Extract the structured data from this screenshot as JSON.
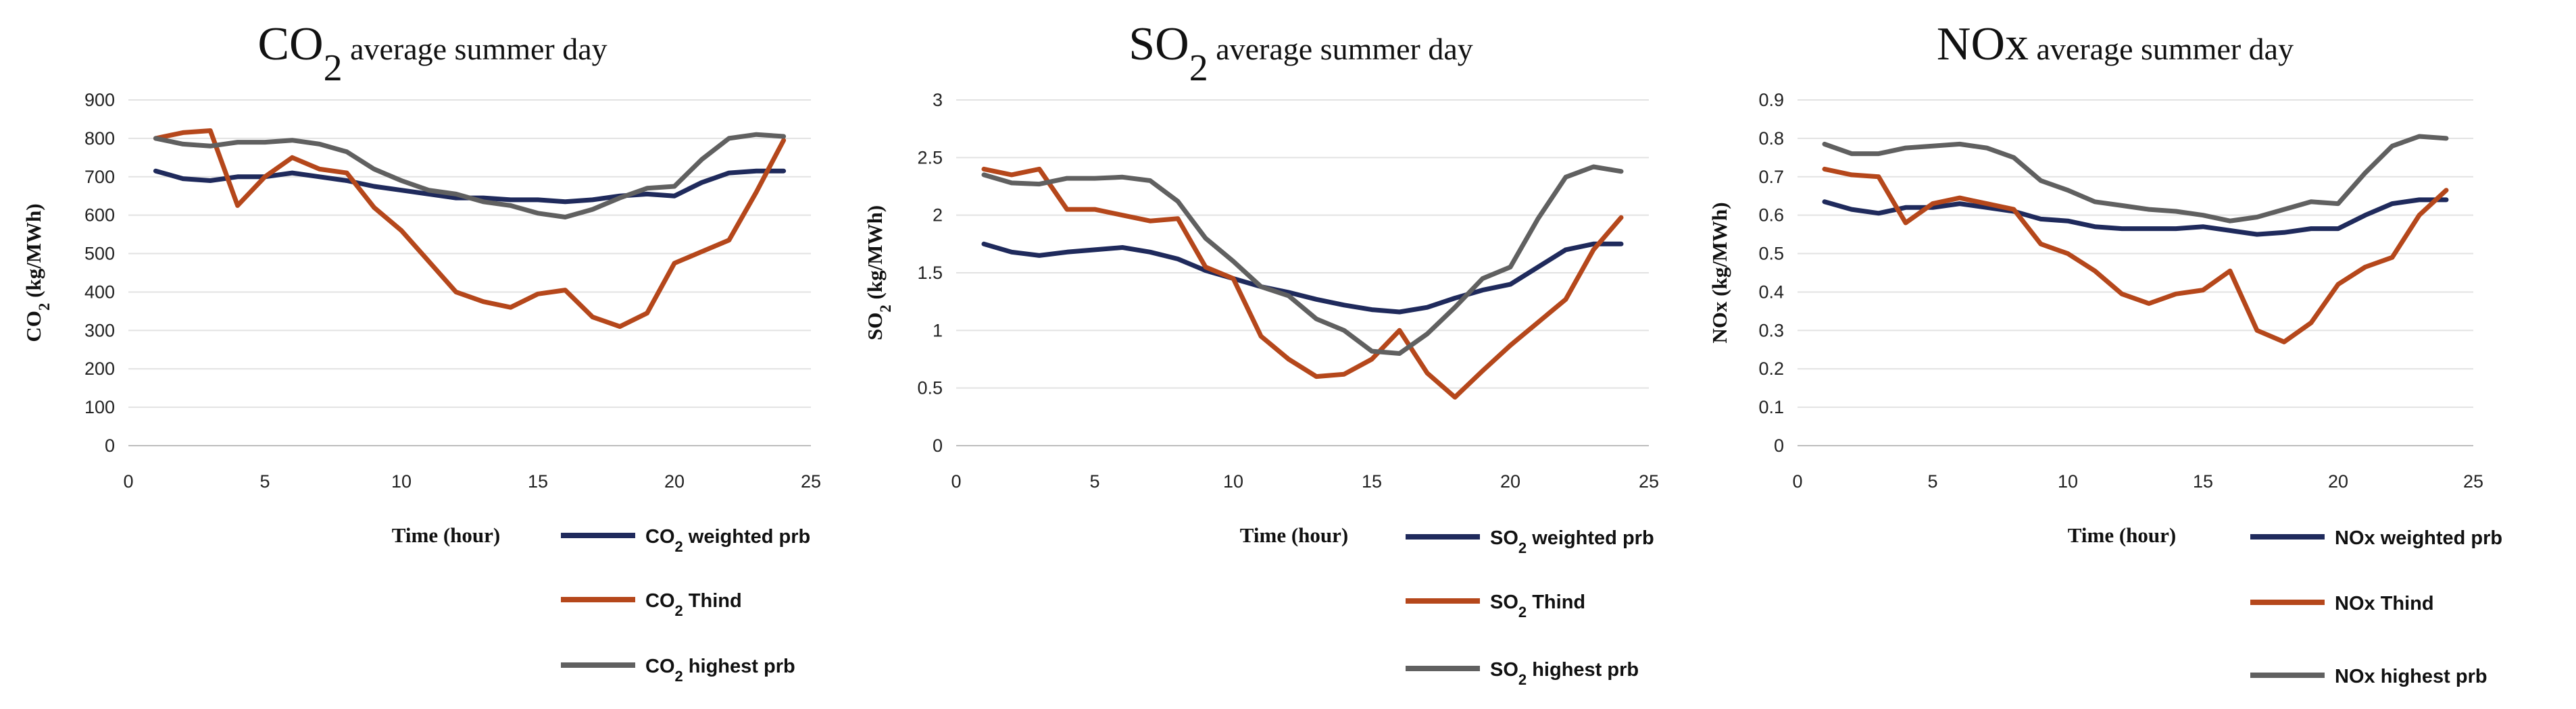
{
  "chart_data": [
    {
      "type": "line",
      "title_main": "CO",
      "title_sub": "2",
      "title_rest": " average summer day",
      "ylabel_main": "CO",
      "ylabel_sub": "2",
      "ylabel_rest": " (kg/MWh)",
      "xlabel": "Time (hour)",
      "xlim": [
        0,
        25
      ],
      "ylim": [
        0,
        900
      ],
      "xticks": [
        0,
        5,
        10,
        15,
        20,
        25
      ],
      "yticks": [
        0,
        100,
        200,
        300,
        400,
        500,
        600,
        700,
        800,
        900
      ],
      "x": [
        1,
        2,
        3,
        4,
        5,
        6,
        7,
        8,
        9,
        10,
        11,
        12,
        13,
        14,
        15,
        16,
        17,
        18,
        19,
        20,
        21,
        22,
        23,
        24
      ],
      "series": [
        {
          "name_main": "CO",
          "name_sub": "2",
          "name_rest": " weighted prb",
          "color": "#1f2a5c",
          "values": [
            715,
            695,
            690,
            700,
            700,
            710,
            700,
            690,
            675,
            665,
            655,
            645,
            645,
            640,
            640,
            635,
            640,
            650,
            655,
            650,
            685,
            710,
            715,
            715
          ]
        },
        {
          "name_main": "CO",
          "name_sub": "2",
          "name_rest": " Thind",
          "color": "#b5471b",
          "values": [
            800,
            815,
            820,
            625,
            700,
            750,
            720,
            710,
            620,
            560,
            480,
            400,
            375,
            360,
            395,
            405,
            335,
            310,
            345,
            475,
            505,
            535,
            660,
            795
          ]
        },
        {
          "name_main": "CO",
          "name_sub": "2",
          "name_rest": " highest prb",
          "color": "#606060",
          "values": [
            800,
            785,
            780,
            790,
            790,
            795,
            785,
            765,
            720,
            690,
            665,
            655,
            635,
            625,
            605,
            595,
            615,
            645,
            670,
            675,
            745,
            800,
            810,
            805
          ]
        }
      ]
    },
    {
      "type": "line",
      "title_main": "SO",
      "title_sub": "2",
      "title_rest": " average summer day",
      "ylabel_main": "SO",
      "ylabel_sub": "2",
      "ylabel_rest": " (kg/MWh)",
      "xlabel": "Time (hour)",
      "xlim": [
        0,
        25
      ],
      "ylim": [
        0,
        3
      ],
      "xticks": [
        0,
        5,
        10,
        15,
        20,
        25
      ],
      "yticks": [
        0,
        0.5,
        1,
        1.5,
        2,
        2.5,
        3
      ],
      "x": [
        1,
        2,
        3,
        4,
        5,
        6,
        7,
        8,
        9,
        10,
        11,
        12,
        13,
        14,
        15,
        16,
        17,
        18,
        19,
        20,
        21,
        22,
        23,
        24
      ],
      "series": [
        {
          "name_main": "SO",
          "name_sub": "2",
          "name_rest": " weighted prb",
          "color": "#1f2a5c",
          "values": [
            1.75,
            1.68,
            1.65,
            1.68,
            1.7,
            1.72,
            1.68,
            1.62,
            1.52,
            1.45,
            1.38,
            1.33,
            1.27,
            1.22,
            1.18,
            1.16,
            1.2,
            1.28,
            1.35,
            1.4,
            1.55,
            1.7,
            1.75,
            1.75
          ]
        },
        {
          "name_main": "SO",
          "name_sub": "2",
          "name_rest": " Thind",
          "color": "#b5471b",
          "values": [
            2.4,
            2.35,
            2.4,
            2.05,
            2.05,
            2.0,
            1.95,
            1.97,
            1.55,
            1.45,
            0.95,
            0.75,
            0.6,
            0.62,
            0.75,
            1.0,
            0.63,
            0.42,
            0.65,
            0.87,
            1.07,
            1.27,
            1.7,
            1.98
          ]
        },
        {
          "name_main": "SO",
          "name_sub": "2",
          "name_rest": " highest prb",
          "color": "#606060",
          "values": [
            2.35,
            2.28,
            2.27,
            2.32,
            2.32,
            2.33,
            2.3,
            2.12,
            1.8,
            1.6,
            1.38,
            1.3,
            1.1,
            1.0,
            0.82,
            0.8,
            0.97,
            1.2,
            1.45,
            1.55,
            1.97,
            2.33,
            2.42,
            2.38
          ]
        }
      ]
    },
    {
      "type": "line",
      "title_main": "NOx",
      "title_sub": "",
      "title_rest": " average summer day",
      "ylabel_main": "NOx",
      "ylabel_sub": "",
      "ylabel_rest": " (kg/MWh)",
      "xlabel": "Time (hour)",
      "xlim": [
        0,
        25
      ],
      "ylim": [
        0,
        0.9
      ],
      "xticks": [
        0,
        5,
        10,
        15,
        20,
        25
      ],
      "yticks": [
        0,
        0.1,
        0.2,
        0.3,
        0.4,
        0.5,
        0.6,
        0.7,
        0.8,
        0.9
      ],
      "x": [
        1,
        2,
        3,
        4,
        5,
        6,
        7,
        8,
        9,
        10,
        11,
        12,
        13,
        14,
        15,
        16,
        17,
        18,
        19,
        20,
        21,
        22,
        23,
        24
      ],
      "series": [
        {
          "name_main": "NOx",
          "name_sub": "",
          "name_rest": " weighted prb",
          "color": "#1f2a5c",
          "values": [
            0.635,
            0.615,
            0.605,
            0.62,
            0.62,
            0.63,
            0.62,
            0.61,
            0.59,
            0.585,
            0.57,
            0.565,
            0.565,
            0.565,
            0.57,
            0.56,
            0.55,
            0.555,
            0.565,
            0.565,
            0.6,
            0.63,
            0.64,
            0.64
          ]
        },
        {
          "name_main": "NOx",
          "name_sub": "",
          "name_rest": " Thind",
          "color": "#b5471b",
          "values": [
            0.72,
            0.705,
            0.7,
            0.58,
            0.63,
            0.645,
            0.63,
            0.615,
            0.525,
            0.5,
            0.455,
            0.395,
            0.37,
            0.395,
            0.405,
            0.455,
            0.3,
            0.27,
            0.32,
            0.42,
            0.465,
            0.49,
            0.6,
            0.665
          ]
        },
        {
          "name_main": "NOx",
          "name_sub": "",
          "name_rest": " highest prb",
          "color": "#606060",
          "values": [
            0.785,
            0.76,
            0.76,
            0.775,
            0.78,
            0.785,
            0.775,
            0.75,
            0.69,
            0.665,
            0.635,
            0.625,
            0.615,
            0.61,
            0.6,
            0.585,
            0.595,
            0.615,
            0.635,
            0.63,
            0.71,
            0.78,
            0.805,
            0.8
          ]
        }
      ]
    }
  ]
}
